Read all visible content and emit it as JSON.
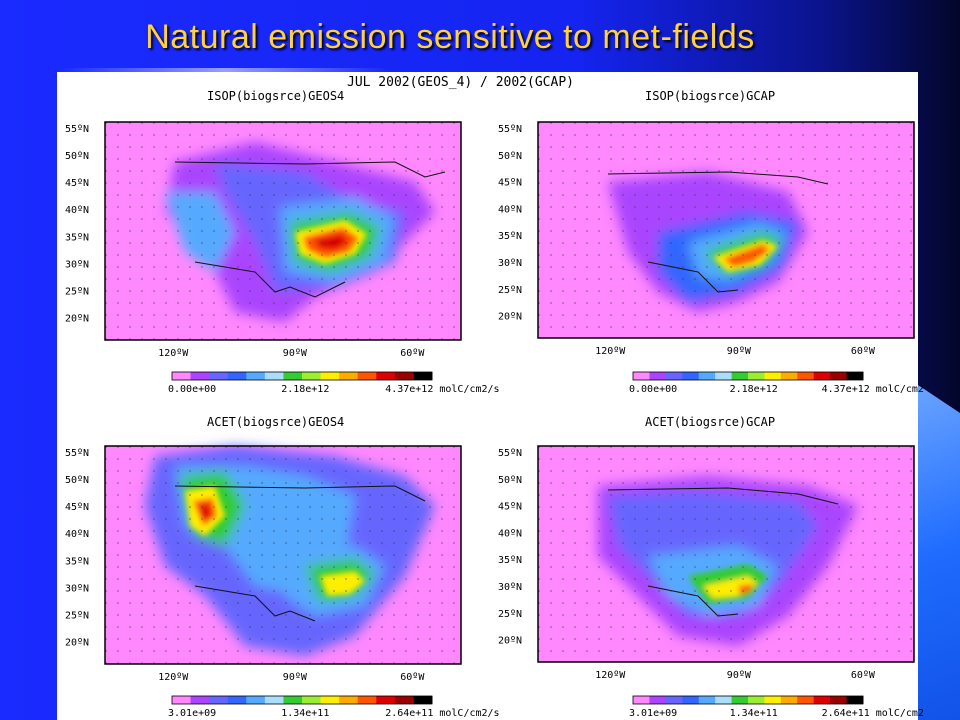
{
  "slide": {
    "title": "Natural emission sensitive to met-fields"
  },
  "colors": {
    "title": "#ffd23a",
    "background": "#1524f0",
    "scale": [
      "#ff88ff",
      "#aa44ff",
      "#6666ff",
      "#3366ff",
      "#55aaff",
      "#aaddff",
      "#33cc33",
      "#99ee33",
      "#ffee00",
      "#ffaa00",
      "#ff5500",
      "#dd0000",
      "#990000",
      "#000000"
    ]
  },
  "chart_data": {
    "type": "heatmap",
    "title": "JUL  2002(GEOS_4) / 2002(GCAP)",
    "lat_ticks": [
      "55ºN",
      "50ºN",
      "45ºN",
      "40ºN",
      "35ºN",
      "30ºN",
      "25ºN",
      "20ºN"
    ],
    "lon_ticks": [
      "120ºW",
      "90ºW",
      "60ºW"
    ],
    "grid": "dotted",
    "panels": [
      {
        "title": "ISOP(biogsrce)GEOS4",
        "colorbar": {
          "min": "0.00e+00",
          "mid": "2.18e+12",
          "max": "4.37e+12",
          "unit": "molC/cm2/s"
        },
        "hotspot": "southeastern US, max near 32ºN 90ºW"
      },
      {
        "title": "ISOP(biogsrce)GCAP",
        "colorbar": {
          "min": "0.00e+00",
          "mid": "2.18e+12",
          "max": "4.37e+12",
          "unit": "molC/cm2"
        },
        "hotspot": "southeastern US, max near 31ºN 92ºW"
      },
      {
        "title": "ACET(biogsrce)GEOS4",
        "colorbar": {
          "min": "3.01e+09",
          "mid": "1.34e+11",
          "max": "2.64e+11",
          "unit": "molC/cm2/s"
        },
        "hotspot": "Pacific Northwest near 45ºN 122ºW; secondary southeastern US"
      },
      {
        "title": "ACET(biogsrce)GCAP",
        "colorbar": {
          "min": "3.01e+09",
          "mid": "1.34e+11",
          "max": "2.64e+11",
          "unit": "molC/cm2"
        },
        "hotspot": "southeastern US near 31ºN 92ºW"
      }
    ]
  }
}
